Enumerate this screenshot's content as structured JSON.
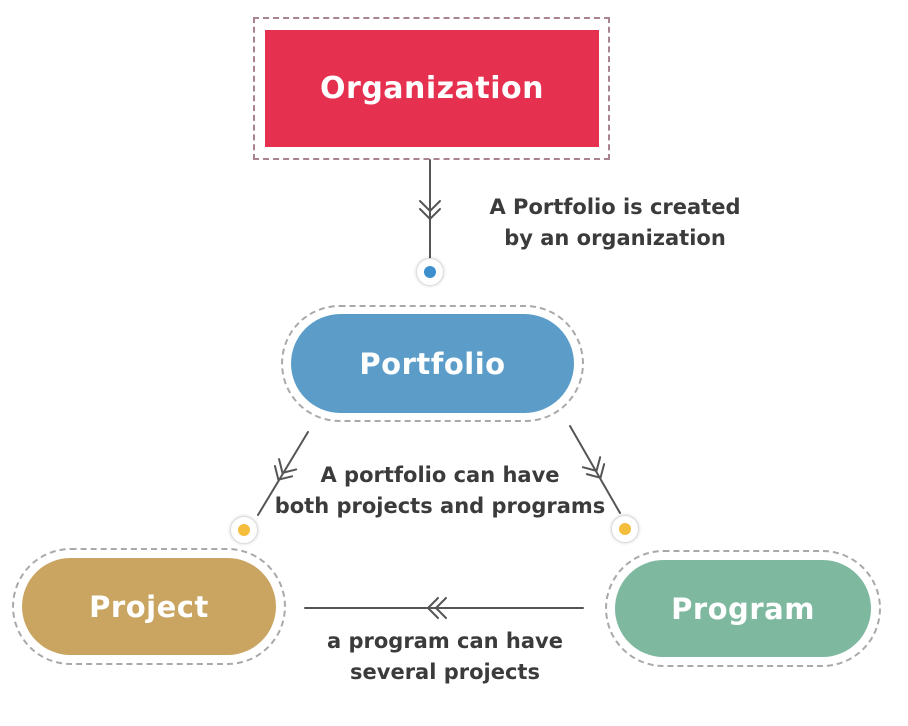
{
  "colors": {
    "organization": "#e5314f",
    "portfolio": "#5b9dc8",
    "project": "#c9a561",
    "program": "#7eb89f",
    "connector": "#555555",
    "dot_blue": "#3a8fcc",
    "dot_yellow": "#f4bd3c",
    "outline": "#a9a9a9",
    "caption": "#3b3b3b"
  },
  "nodes": {
    "organization": "Organization",
    "portfolio": "Portfolio",
    "project": "Project",
    "program": "Program"
  },
  "relations": {
    "organization_portfolio": {
      "line1": "A Portfolio is created",
      "line2": "by an organization"
    },
    "portfolio_children": {
      "line1": "A portfolio can have",
      "line2": "both projects and programs"
    },
    "program_project": {
      "line1": "a program can have",
      "line2": "several projects"
    }
  },
  "icons": {
    "port": "circle-dot-icon",
    "arrow": "double-chevron-arrow-icon"
  }
}
